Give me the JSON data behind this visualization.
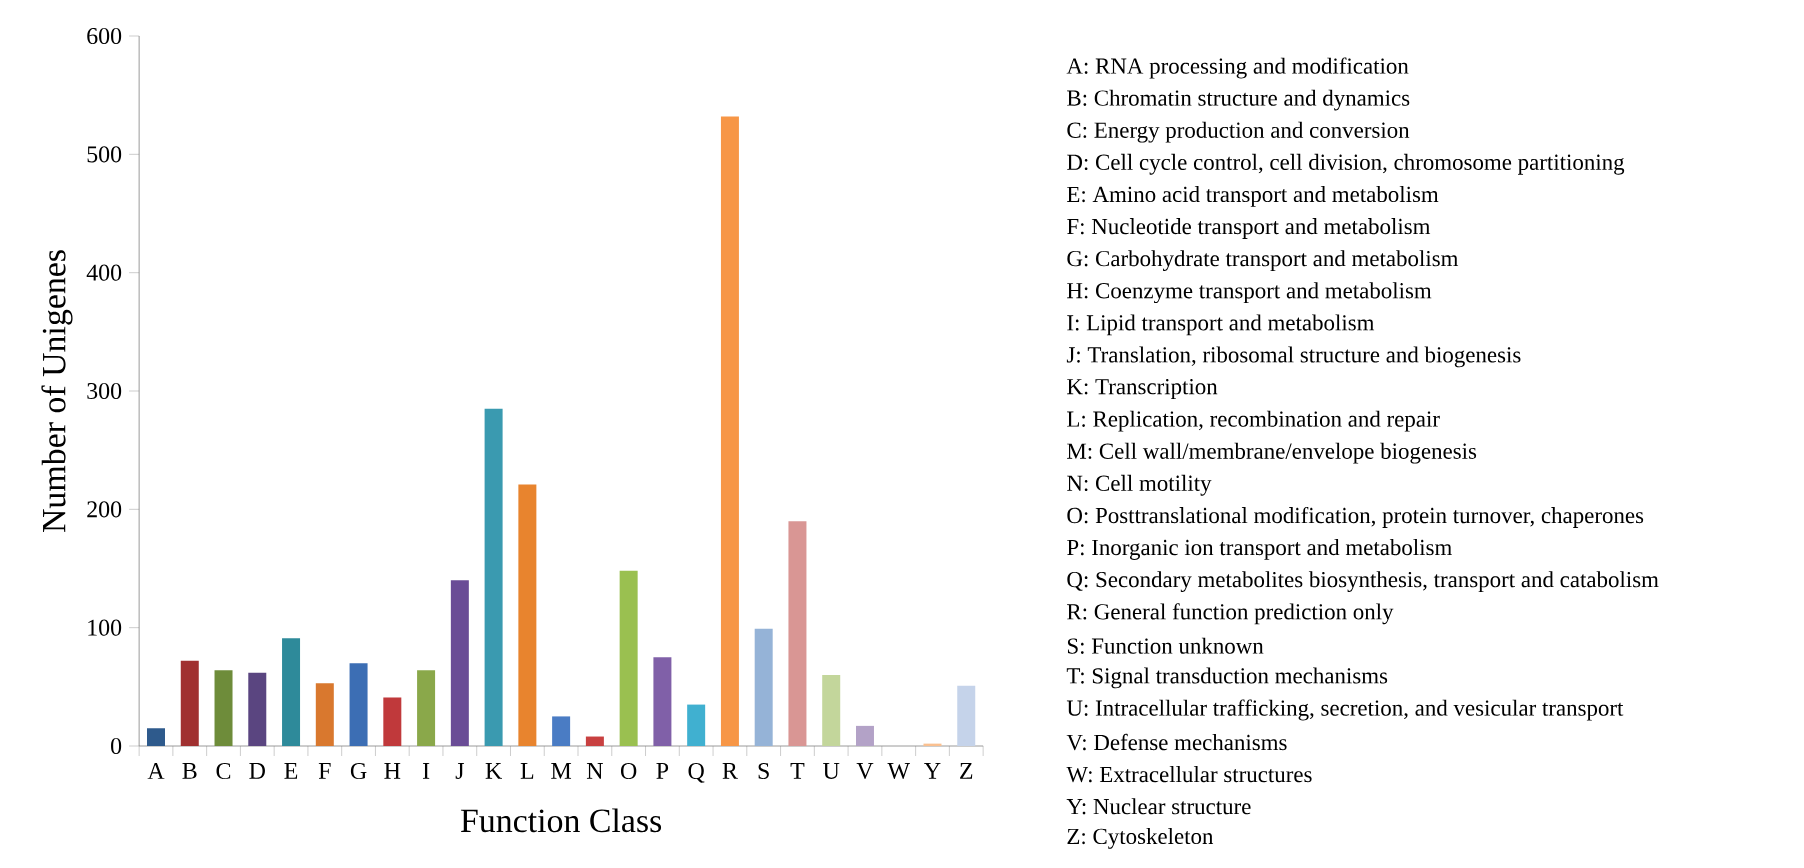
{
  "chart_data": {
    "type": "bar",
    "xlabel": "Function Class",
    "ylabel": "Number of Unigenes",
    "categories": [
      "A",
      "B",
      "C",
      "D",
      "E",
      "F",
      "G",
      "H",
      "I",
      "J",
      "K",
      "L",
      "M",
      "N",
      "O",
      "P",
      "Q",
      "R",
      "S",
      "T",
      "U",
      "V",
      "W",
      "Y",
      "Z"
    ],
    "values": [
      15,
      72,
      64,
      62,
      91,
      53,
      70,
      41,
      64,
      140,
      285,
      221,
      25,
      8,
      148,
      75,
      35,
      532,
      99,
      190,
      60,
      17,
      0,
      2,
      51
    ],
    "colors": [
      "#2e5a8c",
      "#a03030",
      "#6e8c3a",
      "#5a4580",
      "#2e8a9a",
      "#d9782e",
      "#3c6eb4",
      "#c0393b",
      "#8aa84a",
      "#6a4c96",
      "#3a9ab0",
      "#e8842e",
      "#4a7cc4",
      "#c84040",
      "#9ac050",
      "#8060a8",
      "#40b0d0",
      "#f79646",
      "#95b3d7",
      "#d99694",
      "#c3d69b",
      "#b3a2c7",
      "#93cddd",
      "#fac090",
      "#c5d3ea"
    ],
    "ylim": [
      0,
      600
    ],
    "yticks": [
      0,
      100,
      200,
      300,
      400,
      500,
      600
    ],
    "annotations": [
      "A: RNA processing and modification",
      "B: Chromatin structure and dynamics",
      "C: Energy production and conversion",
      "D: Cell cycle control, cell division, chromosome partitioning",
      "E: Amino acid transport and metabolism",
      "F: Nucleotide transport and metabolism",
      "G: Carbohydrate transport and metabolism",
      "H: Coenzyme transport and metabolism",
      "I: Lipid transport and metabolism",
      "J: Translation, ribosomal structure and biogenesis",
      "K: Transcription",
      "L: Replication, recombination and repair",
      "M: Cell wall/membrane/envelope biogenesis",
      "N: Cell motility",
      "O: Posttranslational modification, protein turnover, chaperones",
      "P: Inorganic ion transport and metabolism",
      "Q: Secondary metabolites biosynthesis, transport and catabolism",
      "R: General function prediction only",
      "S: Function unknown",
      "T: Signal transduction mechanisms",
      "U: Intracellular trafficking, secretion, and vesicular transport",
      "V: Defense mechanisms",
      "W: Extracellular structures",
      "Y: Nuclear structure",
      "Z: Cytoskeleton"
    ]
  }
}
